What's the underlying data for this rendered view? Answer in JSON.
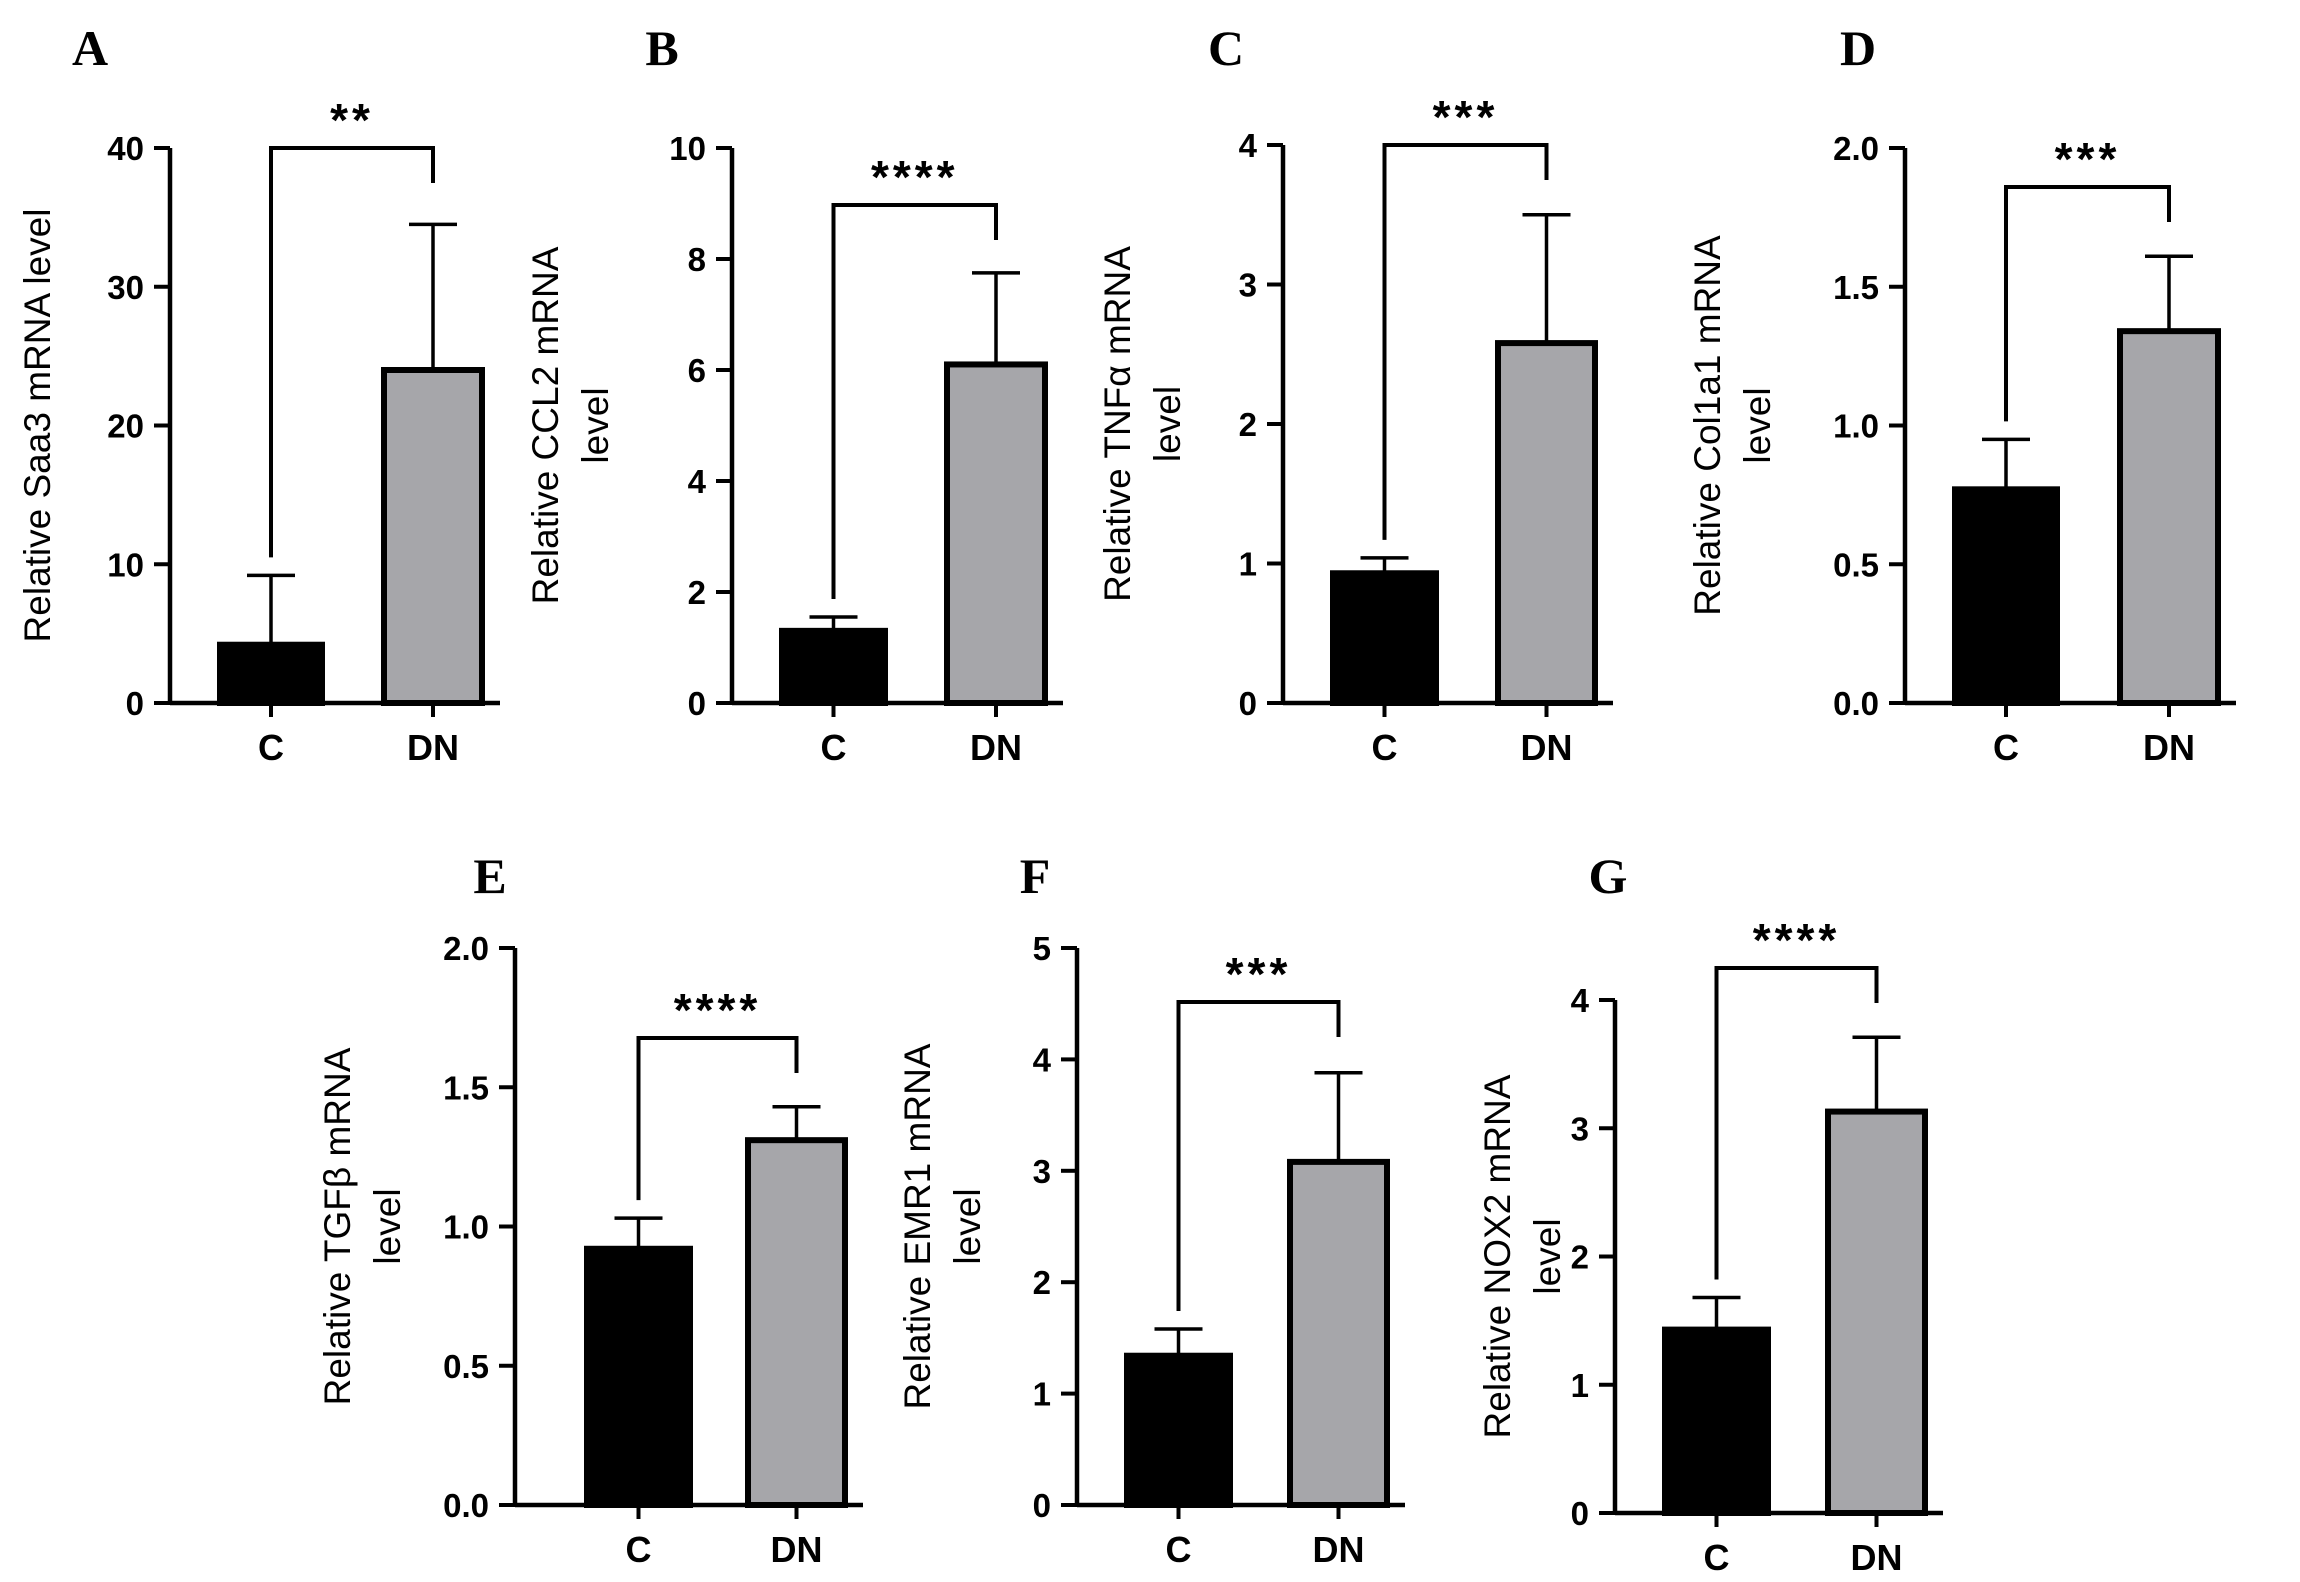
{
  "chart_data": [
    {
      "panel": "A",
      "type": "bar",
      "ylabel_lines": [
        "Relative Saa3 mRNA level"
      ],
      "categories": [
        "C",
        "DN"
      ],
      "values": [
        4.2,
        24.0
      ],
      "errors": [
        5.0,
        10.5
      ],
      "ylim": [
        0,
        40
      ],
      "yticks": [
        "0",
        "10",
        "20",
        "30",
        "40"
      ],
      "significance": "**",
      "colors": [
        "#000000",
        "#a6a6aa"
      ]
    },
    {
      "panel": "B",
      "type": "bar",
      "ylabel_lines": [
        "Relative CCL2 mRNA",
        "level"
      ],
      "categories": [
        "C",
        "DN"
      ],
      "values": [
        1.3,
        6.1
      ],
      "errors": [
        0.25,
        1.65
      ],
      "ylim": [
        0,
        10
      ],
      "yticks": [
        "0",
        "2",
        "4",
        "6",
        "8",
        "10"
      ],
      "significance": "****",
      "colors": [
        "#000000",
        "#a6a6aa"
      ]
    },
    {
      "panel": "C",
      "type": "bar",
      "ylabel_lines": [
        "Relative TNFα mRNA",
        "level"
      ],
      "categories": [
        "C",
        "DN"
      ],
      "values": [
        0.93,
        2.58
      ],
      "errors": [
        0.11,
        0.92
      ],
      "ylim": [
        0,
        4
      ],
      "yticks": [
        "0",
        "1",
        "2",
        "3",
        "4"
      ],
      "significance": "***",
      "colors": [
        "#000000",
        "#a6a6aa"
      ]
    },
    {
      "panel": "D",
      "type": "bar",
      "ylabel_lines": [
        "Relative Col1a1 mRNA",
        "level"
      ],
      "categories": [
        "C",
        "DN"
      ],
      "values": [
        0.77,
        1.34
      ],
      "errors": [
        0.18,
        0.27
      ],
      "ylim": [
        0,
        2.0
      ],
      "yticks": [
        "0.0",
        "0.5",
        "1.0",
        "1.5",
        "2.0"
      ],
      "significance": "***",
      "colors": [
        "#000000",
        "#a6a6aa"
      ]
    },
    {
      "panel": "E",
      "type": "bar",
      "ylabel_lines": [
        "Relative TGFβ mRNA",
        "level"
      ],
      "categories": [
        "C",
        "DN"
      ],
      "values": [
        0.92,
        1.31
      ],
      "errors": [
        0.11,
        0.12
      ],
      "ylim": [
        0,
        2.0
      ],
      "yticks": [
        "0.0",
        "0.5",
        "1.0",
        "1.5",
        "2.0"
      ],
      "significance": "****",
      "colors": [
        "#000000",
        "#a6a6aa"
      ]
    },
    {
      "panel": "F",
      "type": "bar",
      "ylabel_lines": [
        "Relative EMR1 mRNA",
        "level"
      ],
      "categories": [
        "C",
        "DN"
      ],
      "values": [
        1.34,
        3.08
      ],
      "errors": [
        0.24,
        0.8
      ],
      "ylim": [
        0,
        5
      ],
      "yticks": [
        "0",
        "1",
        "2",
        "3",
        "4",
        "5"
      ],
      "significance": "***",
      "colors": [
        "#000000",
        "#a6a6aa"
      ]
    },
    {
      "panel": "G",
      "type": "bar",
      "ylabel_lines": [
        "Relative NOX2 mRNA",
        "level"
      ],
      "categories": [
        "C",
        "DN"
      ],
      "values": [
        1.43,
        3.13
      ],
      "errors": [
        0.25,
        0.58
      ],
      "ylim": [
        0,
        4
      ],
      "yticks": [
        "0",
        "1",
        "2",
        "3",
        "4"
      ],
      "significance": "****",
      "colors": [
        "#000000",
        "#a6a6aa"
      ]
    }
  ]
}
